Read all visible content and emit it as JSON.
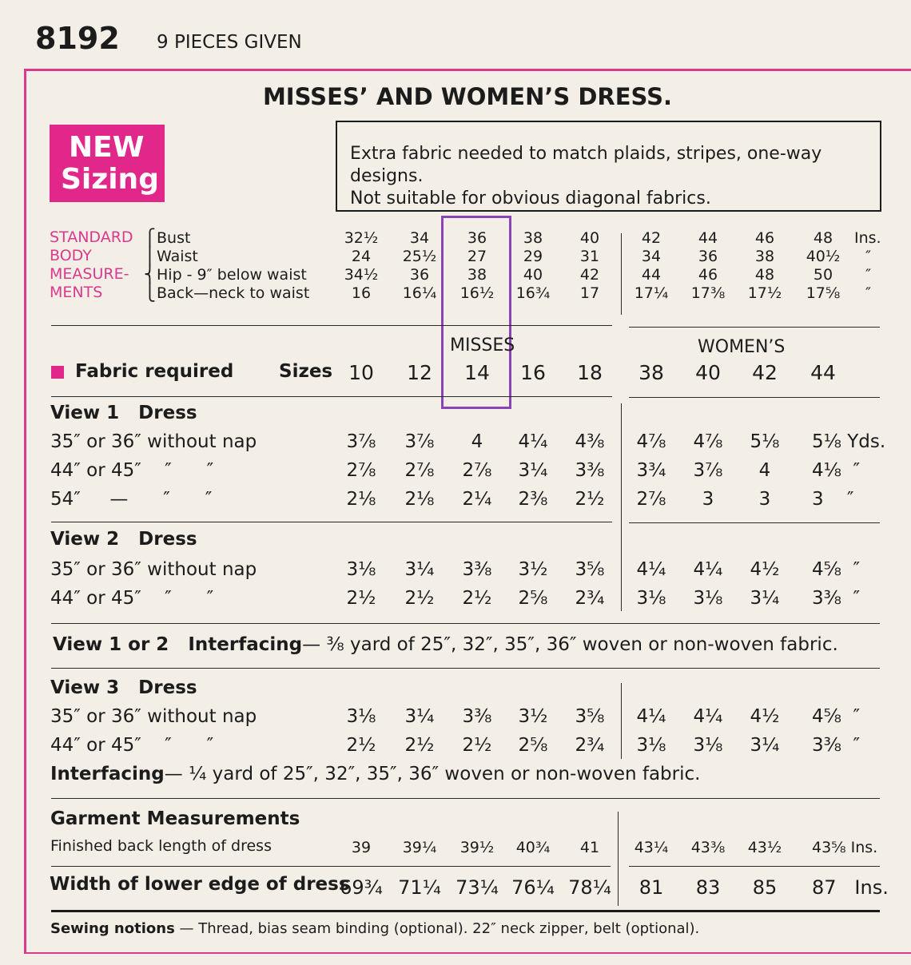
{
  "header": {
    "pattern_no": "8192",
    "pieces": "9 PIECES GIVEN"
  },
  "title": "MISSES’ AND WOMEN’S DRESS.",
  "new_sizing": {
    "line1": "NEW",
    "line2": "Sizing"
  },
  "note": {
    "line1": "Extra fabric needed to match plaids, stripes, one-way designs.",
    "line2": "Not suitable for obvious diagonal fabrics."
  },
  "body_meas": {
    "label": [
      "STANDARD",
      "BODY",
      "MEASURE-",
      "MENTS"
    ],
    "rows": [
      {
        "label": "Bust",
        "values": [
          "32½",
          "34",
          "36",
          "38",
          "40",
          "42",
          "44",
          "46",
          "48"
        ],
        "unit": "Ins."
      },
      {
        "label": "Waist",
        "values": [
          "24",
          "25½",
          "27",
          "29",
          "31",
          "34",
          "36",
          "38",
          "40½"
        ],
        "unit": "″"
      },
      {
        "label": "Hip - 9″ below waist",
        "values": [
          "34½",
          "36",
          "38",
          "40",
          "42",
          "44",
          "46",
          "48",
          "50"
        ],
        "unit": "″"
      },
      {
        "label": "Back—neck to waist",
        "values": [
          "16",
          "16¼",
          "16½",
          "16¾",
          "17",
          "17¼",
          "17⅜",
          "17½",
          "17⅝"
        ],
        "unit": "″"
      }
    ]
  },
  "size_header": {
    "misses": "MISSES",
    "womens": "WOMEN’S",
    "fabric_required": "Fabric required",
    "sizes_label": "Sizes",
    "sizes": [
      "10",
      "12",
      "14",
      "16",
      "18",
      "38",
      "40",
      "42",
      "44"
    ]
  },
  "view1": {
    "title": "View 1   Dress",
    "rows": [
      {
        "label": "35″ or 36″ without nap",
        "values": [
          "3⅞",
          "3⅞",
          "4",
          "4¼",
          "4⅜",
          "4⅞",
          "4⅞",
          "5⅛",
          "5⅛ Yds."
        ]
      },
      {
        "label": "44″ or 45″    ″      ″",
        "values": [
          "2⅞",
          "2⅞",
          "2⅞",
          "3¼",
          "3⅜",
          "3¾",
          "3⅞",
          "4",
          "4⅛  ″"
        ]
      },
      {
        "label": "54″     —      ″      ″",
        "values": [
          "2⅛",
          "2⅛",
          "2¼",
          "2⅜",
          "2½",
          "2⅞",
          "3",
          "3",
          "3    ″"
        ]
      }
    ]
  },
  "view2": {
    "title": "View 2   Dress",
    "rows": [
      {
        "label": "35″ or 36″ without nap",
        "values": [
          "3⅛",
          "3¼",
          "3⅜",
          "3½",
          "3⅝",
          "4¼",
          "4¼",
          "4½",
          "4⅝  ″"
        ]
      },
      {
        "label": "44″ or 45″    ″      ″",
        "values": [
          "2½",
          "2½",
          "2½",
          "2⅝",
          "2¾",
          "3⅛",
          "3⅛",
          "3¼",
          "3⅜  ″"
        ]
      }
    ]
  },
  "interfacing12": {
    "label": "View 1 or 2   Interfacing",
    "text": "— ⅜ yard of 25″, 32″, 35″, 36″ woven or non-woven fabric."
  },
  "view3": {
    "title": "View 3   Dress",
    "rows": [
      {
        "label": "35″ or 36″ without nap",
        "values": [
          "3⅛",
          "3¼",
          "3⅜",
          "3½",
          "3⅝",
          "4¼",
          "4¼",
          "4½",
          "4⅝  ″"
        ]
      },
      {
        "label": "44″ or 45″    ″      ″",
        "values": [
          "2½",
          "2½",
          "2½",
          "2⅝",
          "2¾",
          "3⅛",
          "3⅛",
          "3¼",
          "3⅜  ″"
        ]
      }
    ]
  },
  "interfacing3": {
    "label": "Interfacing",
    "text": "— ¼ yard of 25″, 32″, 35″, 36″ woven or non-woven fabric."
  },
  "garment": {
    "title": "Garment Measurements",
    "back_label": "Finished back length of dress",
    "back_values": [
      "39",
      "39¼",
      "39½",
      "40¾",
      "41",
      "43¼",
      "43⅜",
      "43½",
      "43⅝ Ins."
    ],
    "width_label": "Width of lower edge of dress",
    "width_values": [
      "69¾",
      "71¼",
      "73¼",
      "76¼",
      "78¼",
      "81",
      "83",
      "85",
      "87   Ins."
    ]
  },
  "notions": {
    "label": "Sewing notions",
    "text": "— Thread, bias seam binding (optional). 22″ neck zipper, belt (optional)."
  }
}
